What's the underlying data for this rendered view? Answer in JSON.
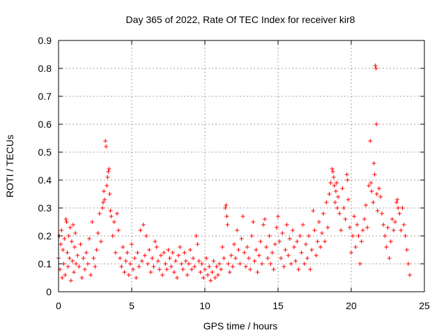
{
  "chart_data": {
    "type": "scatter",
    "title": "Day 365 of 2022, Rate Of TEC Index for receiver kir8",
    "xlabel": "GPS time / hours",
    "ylabel": "ROTI / TECUs",
    "xlim": [
      0,
      25
    ],
    "ylim": [
      0,
      0.9
    ],
    "x_ticks": [
      0,
      5,
      10,
      15,
      20,
      25
    ],
    "x_tick_labels": [
      "0",
      "5",
      "10",
      "15",
      "20",
      "25"
    ],
    "y_ticks": [
      0,
      0.1,
      0.2,
      0.3,
      0.4,
      0.5,
      0.6,
      0.7,
      0.8,
      0.9
    ],
    "y_tick_labels": [
      "0",
      "0.1",
      "0.2",
      "0.3",
      "0.4",
      "0.5",
      "0.6",
      "0.7",
      "0.8",
      "0.9"
    ],
    "grid": true,
    "marker": "+",
    "color": "#ff0000",
    "series": [
      {
        "name": "ROTI",
        "points": [
          [
            0.0,
            0.12
          ],
          [
            0.05,
            0.2
          ],
          [
            0.1,
            0.08
          ],
          [
            0.15,
            0.17
          ],
          [
            0.2,
            0.22
          ],
          [
            0.25,
            0.05
          ],
          [
            0.3,
            0.15
          ],
          [
            0.35,
            0.1
          ],
          [
            0.4,
            0.19
          ],
          [
            0.45,
            0.06
          ],
          [
            0.5,
            0.26
          ],
          [
            0.55,
            0.25
          ],
          [
            0.6,
            0.14
          ],
          [
            0.65,
            0.09
          ],
          [
            0.7,
            0.2
          ],
          [
            0.75,
            0.12
          ],
          [
            0.8,
            0.23
          ],
          [
            0.85,
            0.04
          ],
          [
            0.9,
            0.18
          ],
          [
            0.95,
            0.11
          ],
          [
            1.0,
            0.24
          ],
          [
            1.05,
            0.07
          ],
          [
            1.1,
            0.16
          ],
          [
            1.15,
            0.21
          ],
          [
            1.2,
            0.1
          ],
          [
            1.3,
            0.13
          ],
          [
            1.4,
            0.09
          ],
          [
            1.5,
            0.17
          ],
          [
            1.6,
            0.05
          ],
          [
            1.7,
            0.12
          ],
          [
            1.8,
            0.08
          ],
          [
            1.9,
            0.14
          ],
          [
            2.0,
            0.1
          ],
          [
            2.1,
            0.19
          ],
          [
            2.2,
            0.06
          ],
          [
            2.3,
            0.25
          ],
          [
            2.4,
            0.12
          ],
          [
            2.5,
            0.09
          ],
          [
            2.6,
            0.15
          ],
          [
            2.7,
            0.21
          ],
          [
            2.8,
            0.28
          ],
          [
            2.9,
            0.18
          ],
          [
            3.0,
            0.3
          ],
          [
            3.05,
            0.32
          ],
          [
            3.1,
            0.36
          ],
          [
            3.15,
            0.33
          ],
          [
            3.2,
            0.54
          ],
          [
            3.25,
            0.52
          ],
          [
            3.3,
            0.38
          ],
          [
            3.35,
            0.41
          ],
          [
            3.4,
            0.43
          ],
          [
            3.45,
            0.44
          ],
          [
            3.5,
            0.35
          ],
          [
            3.55,
            0.29
          ],
          [
            3.6,
            0.27
          ],
          [
            3.7,
            0.2
          ],
          [
            3.8,
            0.25
          ],
          [
            3.9,
            0.14
          ],
          [
            4.0,
            0.28
          ],
          [
            4.1,
            0.22
          ],
          [
            4.2,
            0.12
          ],
          [
            4.3,
            0.09
          ],
          [
            4.4,
            0.16
          ],
          [
            4.5,
            0.07
          ],
          [
            4.6,
            0.11
          ],
          [
            4.7,
            0.14
          ],
          [
            4.8,
            0.06
          ],
          [
            4.9,
            0.1
          ],
          [
            5.0,
            0.17
          ],
          [
            5.1,
            0.08
          ],
          [
            5.2,
            0.12
          ],
          [
            5.3,
            0.05
          ],
          [
            5.4,
            0.14
          ],
          [
            5.5,
            0.09
          ],
          [
            5.6,
            0.22
          ],
          [
            5.7,
            0.11
          ],
          [
            5.8,
            0.24
          ],
          [
            5.9,
            0.13
          ],
          [
            6.0,
            0.2
          ],
          [
            6.1,
            0.1
          ],
          [
            6.2,
            0.15
          ],
          [
            6.3,
            0.07
          ],
          [
            6.4,
            0.12
          ],
          [
            6.5,
            0.09
          ],
          [
            6.6,
            0.18
          ],
          [
            6.7,
            0.16
          ],
          [
            6.8,
            0.11
          ],
          [
            6.9,
            0.08
          ],
          [
            7.0,
            0.13
          ],
          [
            7.1,
            0.06
          ],
          [
            7.2,
            0.14
          ],
          [
            7.3,
            0.1
          ],
          [
            7.4,
            0.08
          ],
          [
            7.5,
            0.15
          ],
          [
            7.6,
            0.12
          ],
          [
            7.7,
            0.09
          ],
          [
            7.8,
            0.14
          ],
          [
            7.9,
            0.07
          ],
          [
            8.0,
            0.11
          ],
          [
            8.1,
            0.05
          ],
          [
            8.2,
            0.13
          ],
          [
            8.3,
            0.16
          ],
          [
            8.4,
            0.1
          ],
          [
            8.5,
            0.08
          ],
          [
            8.6,
            0.14
          ],
          [
            8.7,
            0.11
          ],
          [
            8.8,
            0.06
          ],
          [
            8.9,
            0.1
          ],
          [
            9.0,
            0.15
          ],
          [
            9.1,
            0.08
          ],
          [
            9.2,
            0.12
          ],
          [
            9.3,
            0.09
          ],
          [
            9.4,
            0.2
          ],
          [
            9.5,
            0.17
          ],
          [
            9.6,
            0.11
          ],
          [
            9.7,
            0.07
          ],
          [
            9.8,
            0.1
          ],
          [
            9.9,
            0.05
          ],
          [
            10.0,
            0.08
          ],
          [
            10.1,
            0.12
          ],
          [
            10.2,
            0.06
          ],
          [
            10.3,
            0.09
          ],
          [
            10.4,
            0.04
          ],
          [
            10.5,
            0.07
          ],
          [
            10.6,
            0.11
          ],
          [
            10.7,
            0.05
          ],
          [
            10.8,
            0.09
          ],
          [
            10.9,
            0.06
          ],
          [
            11.0,
            0.1
          ],
          [
            11.1,
            0.08
          ],
          [
            11.2,
            0.16
          ],
          [
            11.3,
            0.12
          ],
          [
            11.4,
            0.3
          ],
          [
            11.45,
            0.31
          ],
          [
            11.5,
            0.27
          ],
          [
            11.55,
            0.24
          ],
          [
            11.6,
            0.1
          ],
          [
            11.7,
            0.07
          ],
          [
            11.8,
            0.13
          ],
          [
            11.9,
            0.09
          ],
          [
            12.0,
            0.17
          ],
          [
            12.1,
            0.12
          ],
          [
            12.2,
            0.22
          ],
          [
            12.3,
            0.15
          ],
          [
            12.4,
            0.1
          ],
          [
            12.5,
            0.19
          ],
          [
            12.6,
            0.27
          ],
          [
            12.7,
            0.14
          ],
          [
            12.8,
            0.09
          ],
          [
            12.9,
            0.16
          ],
          [
            13.0,
            0.12
          ],
          [
            13.1,
            0.08
          ],
          [
            13.2,
            0.2
          ],
          [
            13.3,
            0.25
          ],
          [
            13.4,
            0.11
          ],
          [
            13.5,
            0.15
          ],
          [
            13.6,
            0.07
          ],
          [
            13.7,
            0.13
          ],
          [
            13.8,
            0.18
          ],
          [
            13.9,
            0.1
          ],
          [
            14.0,
            0.24
          ],
          [
            14.1,
            0.26
          ],
          [
            14.2,
            0.16
          ],
          [
            14.3,
            0.12
          ],
          [
            14.4,
            0.2
          ],
          [
            14.5,
            0.1
          ],
          [
            14.6,
            0.14
          ],
          [
            14.7,
            0.08
          ],
          [
            14.8,
            0.17
          ],
          [
            14.9,
            0.23
          ],
          [
            15.0,
            0.27
          ],
          [
            15.1,
            0.18
          ],
          [
            15.2,
            0.12
          ],
          [
            15.3,
            0.21
          ],
          [
            15.4,
            0.09
          ],
          [
            15.5,
            0.15
          ],
          [
            15.6,
            0.24
          ],
          [
            15.7,
            0.13
          ],
          [
            15.8,
            0.19
          ],
          [
            15.9,
            0.1
          ],
          [
            16.0,
            0.22
          ],
          [
            16.1,
            0.16
          ],
          [
            16.2,
            0.11
          ],
          [
            16.3,
            0.18
          ],
          [
            16.4,
            0.08
          ],
          [
            16.5,
            0.2
          ],
          [
            16.6,
            0.14
          ],
          [
            16.7,
            0.24
          ],
          [
            16.8,
            0.1
          ],
          [
            16.9,
            0.17
          ],
          [
            17.0,
            0.12
          ],
          [
            17.1,
            0.2
          ],
          [
            17.2,
            0.08
          ],
          [
            17.3,
            0.15
          ],
          [
            17.4,
            0.29
          ],
          [
            17.5,
            0.22
          ],
          [
            17.6,
            0.13
          ],
          [
            17.7,
            0.18
          ],
          [
            17.8,
            0.25
          ],
          [
            17.9,
            0.16
          ],
          [
            18.0,
            0.21
          ],
          [
            18.1,
            0.28
          ],
          [
            18.2,
            0.18
          ],
          [
            18.3,
            0.32
          ],
          [
            18.4,
            0.23
          ],
          [
            18.5,
            0.35
          ],
          [
            18.6,
            0.39
          ],
          [
            18.7,
            0.44
          ],
          [
            18.75,
            0.43
          ],
          [
            18.8,
            0.41
          ],
          [
            18.85,
            0.38
          ],
          [
            18.9,
            0.32
          ],
          [
            18.95,
            0.36
          ],
          [
            19.0,
            0.39
          ],
          [
            19.05,
            0.3
          ],
          [
            19.1,
            0.34
          ],
          [
            19.2,
            0.28
          ],
          [
            19.3,
            0.22
          ],
          [
            19.4,
            0.37
          ],
          [
            19.5,
            0.3
          ],
          [
            19.6,
            0.26
          ],
          [
            19.7,
            0.42
          ],
          [
            19.75,
            0.4
          ],
          [
            19.8,
            0.33
          ],
          [
            19.9,
            0.23
          ],
          [
            20.0,
            0.14
          ],
          [
            20.1,
            0.2
          ],
          [
            20.2,
            0.27
          ],
          [
            20.3,
            0.16
          ],
          [
            20.4,
            0.24
          ],
          [
            20.5,
            0.2
          ],
          [
            20.6,
            0.1
          ],
          [
            20.7,
            0.18
          ],
          [
            20.8,
            0.22
          ],
          [
            20.9,
            0.26
          ],
          [
            21.0,
            0.31
          ],
          [
            21.1,
            0.23
          ],
          [
            21.2,
            0.38
          ],
          [
            21.3,
            0.54
          ],
          [
            21.35,
            0.39
          ],
          [
            21.4,
            0.36
          ],
          [
            21.5,
            0.32
          ],
          [
            21.55,
            0.46
          ],
          [
            21.6,
            0.42
          ],
          [
            21.65,
            0.81
          ],
          [
            21.7,
            0.8
          ],
          [
            21.72,
            0.6
          ],
          [
            21.75,
            0.35
          ],
          [
            21.8,
            0.29
          ],
          [
            21.9,
            0.37
          ],
          [
            22.0,
            0.34
          ],
          [
            22.1,
            0.28
          ],
          [
            22.2,
            0.24
          ],
          [
            22.3,
            0.2
          ],
          [
            22.4,
            0.16
          ],
          [
            22.5,
            0.23
          ],
          [
            22.6,
            0.12
          ],
          [
            22.7,
            0.18
          ],
          [
            22.8,
            0.26
          ],
          [
            22.9,
            0.22
          ],
          [
            23.0,
            0.25
          ],
          [
            23.1,
            0.32
          ],
          [
            23.15,
            0.33
          ],
          [
            23.2,
            0.3
          ],
          [
            23.3,
            0.28
          ],
          [
            23.4,
            0.22
          ],
          [
            23.5,
            0.3
          ],
          [
            23.6,
            0.24
          ],
          [
            23.7,
            0.2
          ],
          [
            23.8,
            0.15
          ],
          [
            23.9,
            0.1
          ],
          [
            24.0,
            0.06
          ]
        ]
      }
    ]
  }
}
